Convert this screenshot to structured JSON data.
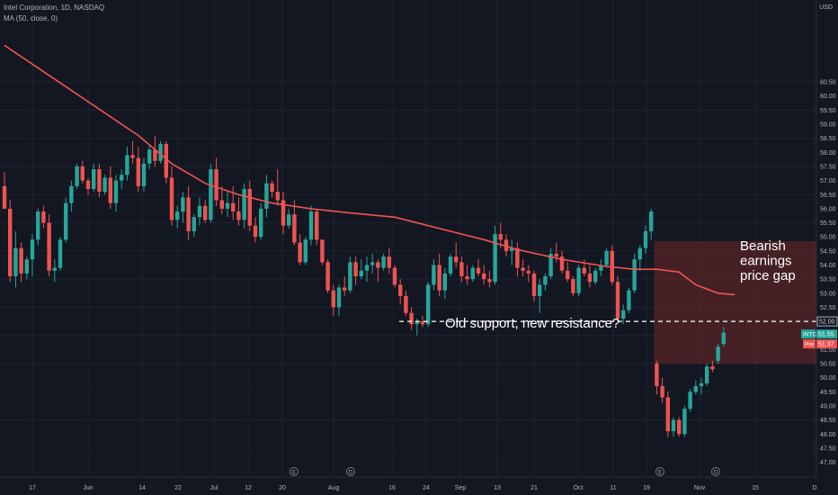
{
  "header": {
    "symbol_line": "Intel Corporation, 1D, NASDAQ",
    "indicator_line": "MA (50, close, 0)",
    "currency": "USD"
  },
  "annotations": {
    "gap_label_lines": [
      "Bearish",
      "earnings",
      "price gap"
    ],
    "resistance_label": "Old support, new resistance?"
  },
  "price_tags": {
    "level": "52.00",
    "last_symbol": "INTC",
    "last_value": "51.55",
    "pre_label": "Pre",
    "pre_value": "51.37"
  },
  "colors": {
    "background": "#131722",
    "grid": "#1f2330",
    "up_candle": "#26a69a",
    "down_candle": "#ef5350",
    "moving_average": "#ef5350",
    "gap_zone": "rgba(110,40,40,0.55)",
    "axis_text": "#b2b5be",
    "annotation_text": "#ffffff"
  },
  "chart_data": {
    "type": "candlestick",
    "title": "Intel Corporation, 1D, NASDAQ",
    "ylim": [
      47.0,
      61.0
    ],
    "yticks": [
      47.0,
      47.5,
      48.0,
      48.5,
      49.0,
      49.5,
      50.0,
      50.5,
      51.0,
      51.5,
      52.0,
      52.5,
      53.0,
      53.5,
      54.0,
      54.5,
      55.0,
      55.5,
      56.0,
      56.5,
      57.0,
      57.5,
      58.0,
      58.5,
      59.0,
      59.5,
      60.0,
      60.5
    ],
    "xticks": [
      "17",
      "Jun",
      "14",
      "22",
      "Jul",
      "12",
      "20",
      "Aug",
      "16",
      "24",
      "Sep",
      "13",
      "21",
      "Oct",
      "11",
      "19",
      "Nov",
      "15",
      "D"
    ],
    "earnings_markers": [
      "E",
      "D",
      "E",
      "D"
    ],
    "ohlc": [
      [
        56.8,
        57.3,
        56.0,
        56.0
      ],
      [
        56.0,
        56.3,
        53.4,
        53.6
      ],
      [
        53.6,
        55.2,
        53.2,
        54.6
      ],
      [
        54.6,
        54.8,
        53.4,
        53.7
      ],
      [
        53.7,
        54.3,
        53.5,
        54.2
      ],
      [
        54.2,
        55.1,
        53.6,
        54.9
      ],
      [
        54.9,
        56.0,
        54.7,
        55.9
      ],
      [
        55.9,
        56.1,
        55.3,
        55.5
      ],
      [
        55.5,
        55.8,
        53.6,
        53.8
      ],
      [
        53.8,
        54.2,
        53.4,
        53.9
      ],
      [
        53.9,
        55.0,
        53.8,
        54.9
      ],
      [
        54.9,
        56.4,
        54.8,
        56.2
      ],
      [
        56.2,
        57.0,
        55.9,
        56.8
      ],
      [
        56.8,
        57.6,
        56.7,
        57.5
      ],
      [
        57.5,
        57.7,
        56.9,
        57.0
      ],
      [
        57.0,
        57.1,
        56.5,
        56.7
      ],
      [
        56.7,
        57.6,
        56.6,
        57.4
      ],
      [
        57.4,
        57.6,
        56.4,
        56.6
      ],
      [
        56.6,
        57.2,
        56.5,
        57.1
      ],
      [
        57.1,
        57.5,
        56.0,
        56.2
      ],
      [
        56.2,
        57.2,
        55.9,
        57.0
      ],
      [
        57.0,
        57.4,
        56.7,
        57.2
      ],
      [
        57.2,
        58.2,
        57.0,
        57.9
      ],
      [
        57.9,
        58.4,
        57.6,
        57.8
      ],
      [
        57.8,
        58.2,
        56.6,
        56.8
      ],
      [
        56.8,
        57.8,
        56.6,
        57.6
      ],
      [
        57.6,
        58.3,
        57.4,
        58.1
      ],
      [
        58.1,
        58.6,
        57.5,
        57.7
      ],
      [
        57.7,
        58.4,
        57.6,
        58.3
      ],
      [
        58.3,
        58.4,
        56.9,
        57.1
      ],
      [
        57.1,
        57.5,
        55.4,
        55.6
      ],
      [
        55.6,
        56.1,
        55.3,
        55.9
      ],
      [
        55.9,
        56.6,
        55.5,
        56.4
      ],
      [
        56.4,
        56.8,
        54.9,
        55.2
      ],
      [
        55.2,
        55.8,
        55.0,
        55.7
      ],
      [
        55.7,
        56.4,
        55.4,
        56.1
      ],
      [
        56.1,
        56.3,
        55.5,
        55.6
      ],
      [
        55.6,
        57.6,
        55.5,
        57.4
      ],
      [
        57.4,
        57.8,
        56.1,
        56.3
      ],
      [
        56.3,
        56.8,
        55.8,
        56.0
      ],
      [
        56.0,
        56.6,
        55.7,
        56.2
      ],
      [
        56.2,
        56.8,
        55.6,
        55.9
      ],
      [
        55.9,
        56.4,
        55.4,
        55.6
      ],
      [
        55.6,
        56.9,
        55.3,
        56.7
      ],
      [
        56.7,
        57.0,
        55.2,
        55.4
      ],
      [
        55.4,
        55.7,
        54.8,
        55.0
      ],
      [
        55.0,
        56.2,
        54.9,
        56.0
      ],
      [
        56.0,
        57.2,
        55.7,
        56.9
      ],
      [
        56.9,
        57.0,
        56.4,
        56.6
      ],
      [
        56.6,
        57.4,
        56.1,
        56.3
      ],
      [
        56.3,
        56.6,
        55.1,
        55.4
      ],
      [
        55.4,
        56.0,
        55.3,
        55.8
      ],
      [
        55.8,
        56.3,
        54.7,
        54.8
      ],
      [
        54.8,
        55.1,
        54.0,
        54.1
      ],
      [
        54.1,
        55.0,
        54.0,
        54.9
      ],
      [
        54.9,
        56.1,
        54.7,
        55.9
      ],
      [
        55.9,
        56.0,
        54.7,
        54.9
      ],
      [
        54.9,
        54.9,
        54.0,
        54.1
      ],
      [
        54.1,
        54.2,
        53.0,
        53.1
      ],
      [
        53.1,
        53.3,
        52.2,
        52.5
      ],
      [
        52.5,
        53.3,
        52.2,
        53.2
      ],
      [
        53.2,
        53.6,
        52.9,
        53.1
      ],
      [
        53.1,
        54.3,
        53.0,
        54.1
      ],
      [
        54.1,
        54.3,
        53.3,
        53.6
      ],
      [
        53.6,
        54.2,
        53.5,
        53.8
      ],
      [
        53.8,
        54.3,
        53.4,
        54.0
      ],
      [
        54.0,
        54.4,
        53.7,
        54.1
      ],
      [
        54.1,
        54.2,
        53.4,
        53.9
      ],
      [
        53.9,
        54.4,
        53.8,
        54.3
      ],
      [
        54.3,
        54.6,
        53.7,
        53.9
      ],
      [
        53.9,
        54.0,
        53.2,
        53.3
      ],
      [
        53.3,
        53.5,
        52.6,
        52.9
      ],
      [
        52.9,
        53.1,
        52.2,
        52.3
      ],
      [
        52.3,
        52.5,
        51.7,
        51.9
      ],
      [
        51.9,
        52.1,
        51.5,
        52.0
      ],
      [
        52.0,
        52.2,
        51.8,
        51.9
      ],
      [
        51.9,
        53.4,
        51.8,
        53.3
      ],
      [
        53.3,
        54.2,
        53.1,
        54.0
      ],
      [
        54.0,
        54.4,
        52.9,
        53.1
      ],
      [
        53.1,
        53.9,
        52.8,
        53.7
      ],
      [
        53.7,
        54.4,
        53.6,
        54.3
      ],
      [
        54.3,
        54.8,
        53.9,
        54.1
      ],
      [
        54.1,
        54.3,
        53.4,
        53.6
      ],
      [
        53.6,
        54.0,
        53.3,
        53.5
      ],
      [
        53.5,
        54.0,
        53.4,
        53.9
      ],
      [
        53.9,
        54.2,
        53.6,
        53.7
      ],
      [
        53.7,
        54.0,
        53.3,
        53.5
      ],
      [
        53.5,
        53.8,
        53.2,
        53.4
      ],
      [
        53.4,
        55.4,
        53.3,
        55.1
      ],
      [
        55.1,
        55.5,
        54.6,
        54.9
      ],
      [
        54.9,
        55.1,
        54.3,
        54.5
      ],
      [
        54.5,
        54.9,
        54.0,
        54.6
      ],
      [
        54.6,
        54.8,
        53.6,
        53.9
      ],
      [
        53.9,
        54.2,
        53.6,
        53.8
      ],
      [
        53.8,
        54.0,
        53.4,
        53.7
      ],
      [
        53.7,
        53.8,
        52.7,
        52.9
      ],
      [
        52.9,
        53.5,
        52.3,
        53.3
      ],
      [
        53.3,
        53.7,
        53.1,
        53.6
      ],
      [
        53.6,
        54.6,
        53.5,
        54.4
      ],
      [
        54.4,
        54.8,
        54.1,
        54.3
      ],
      [
        54.3,
        54.5,
        53.7,
        53.8
      ],
      [
        53.8,
        54.1,
        53.4,
        53.5
      ],
      [
        53.5,
        53.6,
        52.9,
        53.0
      ],
      [
        53.0,
        54.0,
        52.9,
        53.9
      ],
      [
        53.9,
        54.2,
        53.6,
        53.7
      ],
      [
        53.7,
        54.0,
        53.2,
        53.4
      ],
      [
        53.4,
        53.9,
        53.3,
        53.8
      ],
      [
        53.8,
        54.2,
        53.6,
        54.0
      ],
      [
        54.0,
        54.6,
        53.9,
        54.5
      ],
      [
        54.5,
        54.7,
        53.3,
        53.4
      ],
      [
        53.4,
        53.6,
        52.0,
        52.1
      ],
      [
        52.1,
        52.6,
        51.9,
        52.4
      ],
      [
        52.4,
        53.2,
        52.3,
        53.1
      ],
      [
        53.1,
        54.4,
        53.0,
        54.2
      ],
      [
        54.2,
        54.7,
        53.8,
        54.6
      ],
      [
        54.6,
        55.4,
        54.4,
        55.2
      ],
      [
        55.2,
        56.0,
        54.9,
        55.9
      ],
      [
        50.5,
        50.6,
        49.4,
        49.7
      ],
      [
        49.7,
        50.0,
        49.1,
        49.3
      ],
      [
        49.3,
        49.5,
        47.9,
        48.1
      ],
      [
        48.1,
        48.6,
        47.9,
        48.5
      ],
      [
        48.5,
        48.6,
        47.9,
        48.0
      ],
      [
        48.0,
        49.0,
        47.9,
        48.9
      ],
      [
        48.9,
        49.6,
        48.8,
        49.5
      ],
      [
        49.5,
        49.9,
        49.4,
        49.7
      ],
      [
        49.7,
        50.0,
        49.4,
        49.8
      ],
      [
        49.8,
        50.5,
        49.7,
        50.4
      ],
      [
        50.4,
        50.6,
        50.2,
        50.3
      ],
      [
        50.6,
        51.2,
        50.5,
        51.1
      ],
      [
        51.2,
        51.8,
        51.1,
        51.6
      ]
    ],
    "moving_average": [
      [
        0,
        61.8
      ],
      [
        6,
        61.0
      ],
      [
        12,
        60.2
      ],
      [
        18,
        59.4
      ],
      [
        24,
        58.6
      ],
      [
        30,
        57.6
      ],
      [
        36,
        56.9
      ],
      [
        42,
        56.5
      ],
      [
        48,
        56.2
      ],
      [
        55,
        56.0
      ],
      [
        62,
        55.85
      ],
      [
        70,
        55.7
      ],
      [
        78,
        55.3
      ],
      [
        86,
        54.9
      ],
      [
        92,
        54.55
      ],
      [
        100,
        54.2
      ],
      [
        108,
        53.95
      ],
      [
        113,
        53.85
      ],
      [
        117,
        53.85
      ],
      [
        121,
        53.75
      ],
      [
        124,
        53.3
      ],
      [
        128,
        53.0
      ],
      [
        131,
        52.95
      ]
    ],
    "resistance_level": 52.0,
    "gap_zone": {
      "start_index": 117,
      "price_low": 50.5,
      "price_high": 54.85
    },
    "last_price": 51.55,
    "premarket_price": 51.37
  }
}
